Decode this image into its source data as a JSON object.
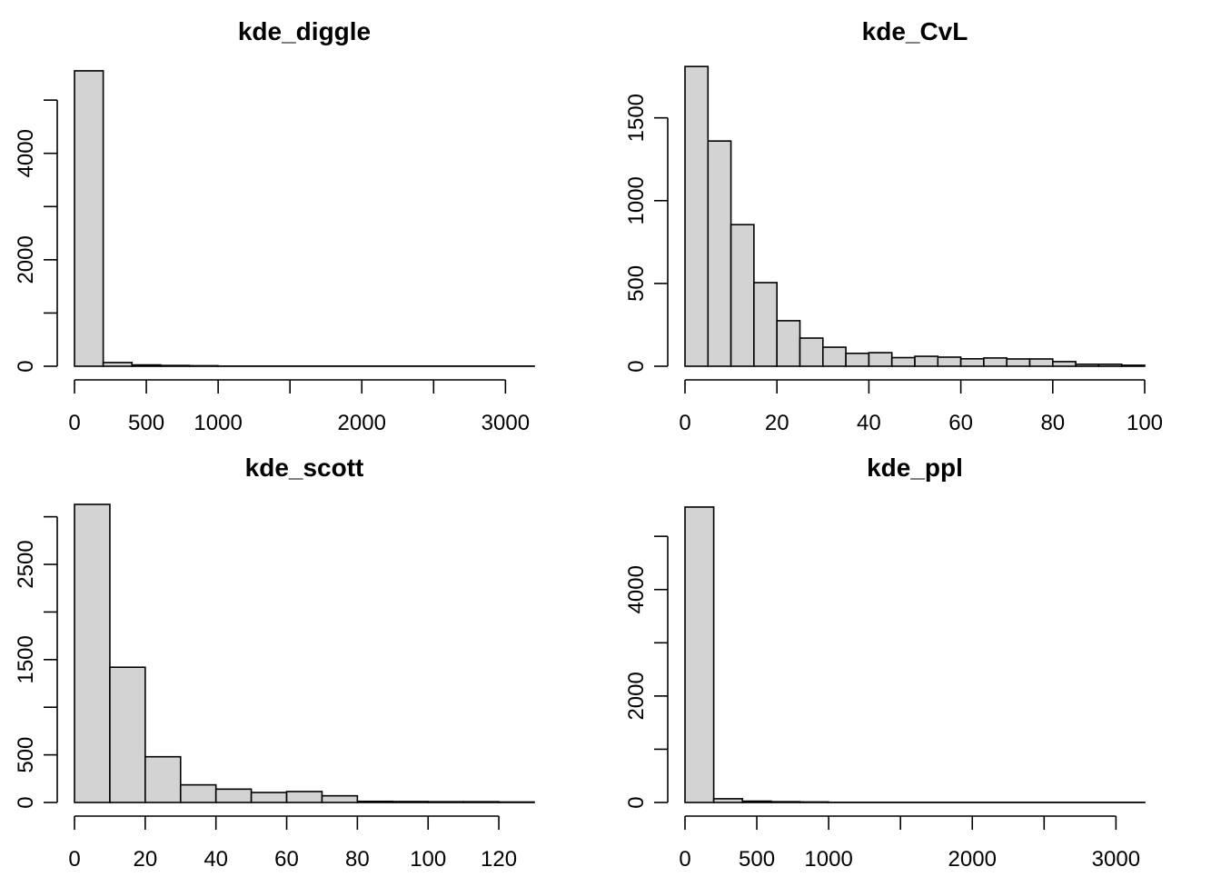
{
  "chart_data": [
    {
      "type": "bar",
      "title": "kde_diggle",
      "xlabel": "",
      "ylabel": "",
      "xlim": [
        0,
        3200
      ],
      "ylim": [
        0,
        5600
      ],
      "x_ticks": [
        0,
        500,
        1000,
        1500,
        2000,
        2500,
        3000
      ],
      "x_tick_labels": [
        "0",
        "500",
        "1000",
        "",
        "2000",
        "",
        "3000"
      ],
      "y_ticks": [
        0,
        1000,
        2000,
        3000,
        4000,
        5000
      ],
      "y_tick_labels": [
        "0",
        "",
        "2000",
        "",
        "4000",
        ""
      ],
      "bins": [
        {
          "x0": 0,
          "x1": 200,
          "count": 5550
        },
        {
          "x0": 200,
          "x1": 400,
          "count": 70
        },
        {
          "x0": 400,
          "x1": 600,
          "count": 25
        },
        {
          "x0": 600,
          "x1": 800,
          "count": 15
        },
        {
          "x0": 800,
          "x1": 1000,
          "count": 10
        },
        {
          "x0": 1000,
          "x1": 3200,
          "count": 3
        }
      ],
      "fill": "#d3d3d3",
      "stroke": "#000000",
      "grid": false
    },
    {
      "type": "bar",
      "title": "kde_CvL",
      "xlabel": "",
      "ylabel": "",
      "xlim": [
        0,
        100
      ],
      "ylim": [
        0,
        1800
      ],
      "x_ticks": [
        0,
        20,
        40,
        60,
        80,
        100
      ],
      "x_tick_labels": [
        "0",
        "20",
        "40",
        "60",
        "80",
        "100"
      ],
      "y_ticks": [
        0,
        500,
        1000,
        1500
      ],
      "y_tick_labels": [
        "0",
        "500",
        "1000",
        "1500"
      ],
      "bins": [
        {
          "x0": 0,
          "x1": 5,
          "count": 1810
        },
        {
          "x0": 5,
          "x1": 10,
          "count": 1360
        },
        {
          "x0": 10,
          "x1": 15,
          "count": 855
        },
        {
          "x0": 15,
          "x1": 20,
          "count": 505
        },
        {
          "x0": 20,
          "x1": 25,
          "count": 275
        },
        {
          "x0": 25,
          "x1": 30,
          "count": 170
        },
        {
          "x0": 30,
          "x1": 35,
          "count": 115
        },
        {
          "x0": 35,
          "x1": 40,
          "count": 78
        },
        {
          "x0": 40,
          "x1": 45,
          "count": 82
        },
        {
          "x0": 45,
          "x1": 50,
          "count": 52
        },
        {
          "x0": 50,
          "x1": 55,
          "count": 60
        },
        {
          "x0": 55,
          "x1": 60,
          "count": 55
        },
        {
          "x0": 60,
          "x1": 65,
          "count": 45
        },
        {
          "x0": 65,
          "x1": 70,
          "count": 50
        },
        {
          "x0": 70,
          "x1": 75,
          "count": 44
        },
        {
          "x0": 75,
          "x1": 80,
          "count": 44
        },
        {
          "x0": 80,
          "x1": 85,
          "count": 28
        },
        {
          "x0": 85,
          "x1": 90,
          "count": 12
        },
        {
          "x0": 90,
          "x1": 95,
          "count": 12
        },
        {
          "x0": 95,
          "x1": 100,
          "count": 6
        }
      ],
      "fill": "#d3d3d3",
      "stroke": "#000000",
      "grid": false
    },
    {
      "type": "bar",
      "title": "kde_scott",
      "xlabel": "",
      "ylabel": "",
      "xlim": [
        0,
        130
      ],
      "ylim": [
        0,
        3130
      ],
      "x_ticks": [
        0,
        20,
        40,
        60,
        80,
        100,
        120
      ],
      "x_tick_labels": [
        "0",
        "20",
        "40",
        "60",
        "80",
        "100",
        "120"
      ],
      "y_ticks": [
        0,
        500,
        1000,
        1500,
        2000,
        2500,
        3000
      ],
      "y_tick_labels": [
        "0",
        "500",
        "",
        "1500",
        "",
        "2500",
        ""
      ],
      "bins": [
        {
          "x0": 0,
          "x1": 10,
          "count": 3130
        },
        {
          "x0": 10,
          "x1": 20,
          "count": 1420
        },
        {
          "x0": 20,
          "x1": 30,
          "count": 480
        },
        {
          "x0": 30,
          "x1": 40,
          "count": 185
        },
        {
          "x0": 40,
          "x1": 50,
          "count": 140
        },
        {
          "x0": 50,
          "x1": 60,
          "count": 105
        },
        {
          "x0": 60,
          "x1": 70,
          "count": 115
        },
        {
          "x0": 70,
          "x1": 80,
          "count": 70
        },
        {
          "x0": 80,
          "x1": 90,
          "count": 12
        },
        {
          "x0": 90,
          "x1": 100,
          "count": 10
        },
        {
          "x0": 100,
          "x1": 110,
          "count": 8
        },
        {
          "x0": 110,
          "x1": 120,
          "count": 8
        },
        {
          "x0": 120,
          "x1": 130,
          "count": 5
        }
      ],
      "fill": "#d3d3d3",
      "stroke": "#000000",
      "grid": false
    },
    {
      "type": "bar",
      "title": "kde_ppl",
      "xlabel": "",
      "ylabel": "",
      "xlim": [
        0,
        3200
      ],
      "ylim": [
        0,
        5600
      ],
      "x_ticks": [
        0,
        500,
        1000,
        1500,
        2000,
        2500,
        3000
      ],
      "x_tick_labels": [
        "0",
        "500",
        "1000",
        "",
        "2000",
        "",
        "3000"
      ],
      "y_ticks": [
        0,
        1000,
        2000,
        3000,
        4000,
        5000
      ],
      "y_tick_labels": [
        "0",
        "",
        "2000",
        "",
        "4000",
        ""
      ],
      "bins": [
        {
          "x0": 0,
          "x1": 200,
          "count": 5550
        },
        {
          "x0": 200,
          "x1": 400,
          "count": 70
        },
        {
          "x0": 400,
          "x1": 600,
          "count": 25
        },
        {
          "x0": 600,
          "x1": 800,
          "count": 15
        },
        {
          "x0": 800,
          "x1": 1000,
          "count": 10
        },
        {
          "x0": 1000,
          "x1": 3200,
          "count": 3
        }
      ],
      "fill": "#d3d3d3",
      "stroke": "#000000",
      "grid": false
    }
  ]
}
